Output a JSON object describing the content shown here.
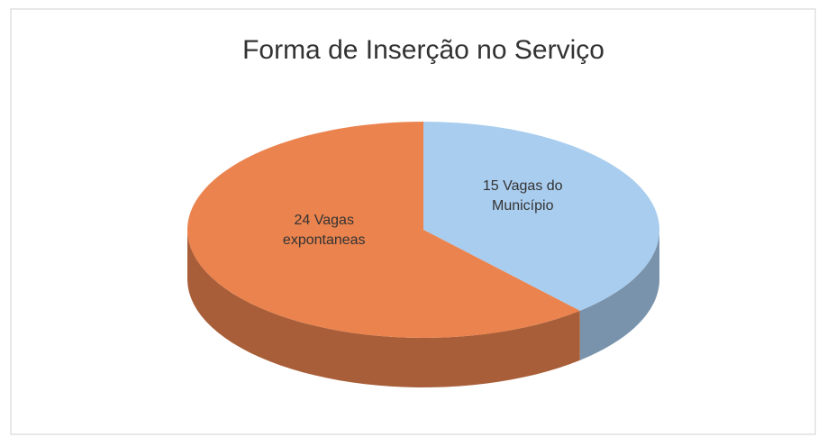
{
  "chart_data": {
    "type": "pie3d",
    "title": "Forma de Inserção no Serviço",
    "values": [
      15,
      24
    ],
    "value_labels": [
      "15 Vagas do Município",
      "24 Vagas expontaneas"
    ],
    "colors": [
      "#a9cdef",
      "#ea834e"
    ]
  }
}
